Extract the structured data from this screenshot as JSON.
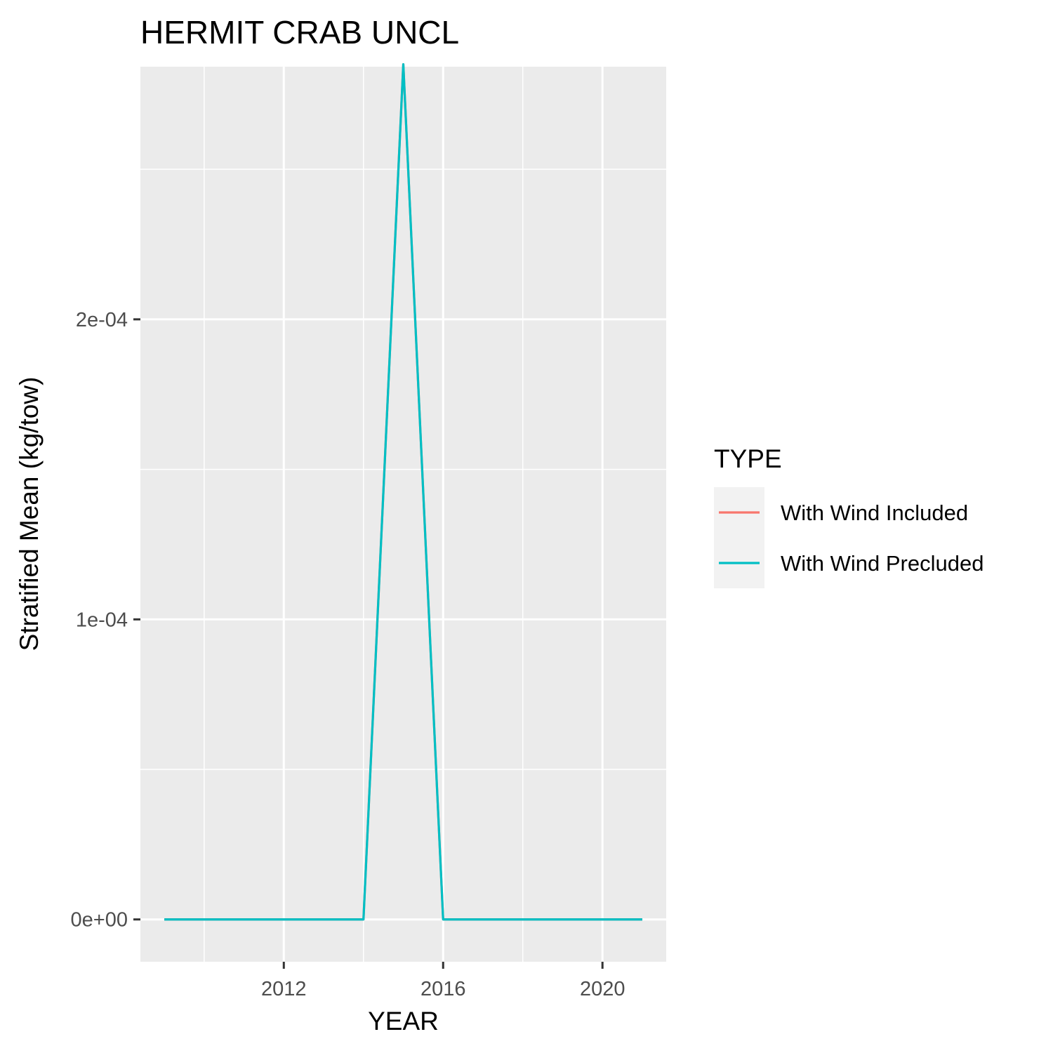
{
  "chart_data": {
    "type": "line",
    "title": "HERMIT CRAB UNCL",
    "xlabel": "YEAR",
    "ylabel": "Stratified Mean (kg/tow)",
    "xlim": [
      2008.4,
      2021.6
    ],
    "ylim": [
      -1.41e-05,
      0.0002842
    ],
    "x_ticks": [
      2012,
      2016,
      2020
    ],
    "x_tick_labels": [
      "2012",
      "2016",
      "2020"
    ],
    "x_minor_ticks": [
      2010,
      2014,
      2018
    ],
    "y_ticks": [
      0,
      0.0001,
      0.0002
    ],
    "y_tick_labels": [
      "0e+00",
      "1e-04",
      "2e-04"
    ],
    "y_minor_ticks": [
      5e-05,
      0.00015,
      0.00025
    ],
    "grid": true,
    "legend": {
      "title": "TYPE",
      "position": "right"
    },
    "x": [
      2009,
      2010,
      2011,
      2012,
      2013,
      2014,
      2015,
      2016,
      2017,
      2018,
      2019,
      2020,
      2021
    ],
    "series": [
      {
        "name": "With Wind Included",
        "color": "#F8766D",
        "values": [
          0,
          0,
          0,
          0,
          0,
          0,
          0.000285,
          0,
          0,
          0,
          0,
          0,
          0
        ]
      },
      {
        "name": "With Wind Precluded",
        "color": "#00BFC4",
        "values": [
          0,
          0,
          0,
          0,
          0,
          0,
          0.000285,
          0,
          0,
          0,
          0,
          0,
          0
        ]
      }
    ]
  }
}
